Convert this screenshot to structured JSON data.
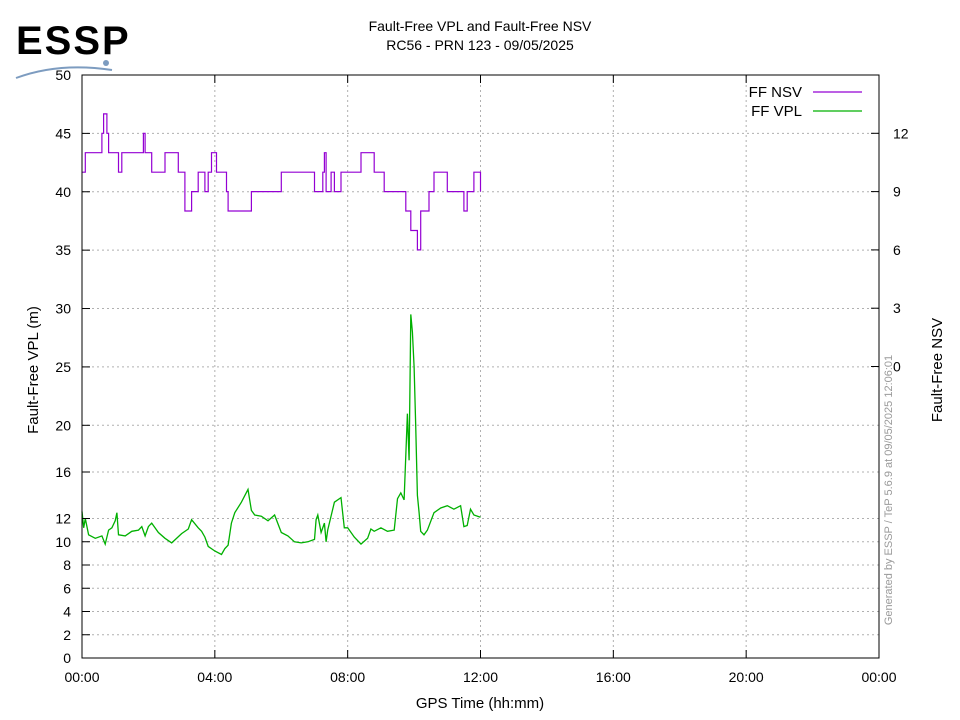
{
  "logo": {
    "text": "ESSP",
    "color": "#7d9cc0"
  },
  "chart_data": {
    "type": "line",
    "title": "Fault-Free VPL and Fault-Free NSV",
    "subtitle": "RC56 - PRN 123 - 09/05/2025",
    "xlabel": "GPS Time (hh:mm)",
    "ylabel": "Fault-Free VPL (m)",
    "y2label": "Fault-Free NSV",
    "x_unit": "hours",
    "xlim": [
      0,
      24
    ],
    "x_ticks": [
      0,
      4,
      8,
      12,
      16,
      20,
      24
    ],
    "x_tick_labels": [
      "00:00",
      "04:00",
      "08:00",
      "12:00",
      "16:00",
      "20:00",
      "00:00"
    ],
    "ylim": [
      0,
      50
    ],
    "y_scale": "piecewise: 0-16 m linear over lower half, 16-50 m linear over upper half",
    "y_ticks": [
      0,
      2,
      4,
      6,
      8,
      10,
      12,
      16,
      20,
      25,
      30,
      35,
      40,
      45,
      50
    ],
    "y2_ticks": [
      0,
      3,
      6,
      9,
      12
    ],
    "grid": true,
    "legend_position": "top-right",
    "watermark": "Generated by ESSP / TeP 5.6.9 at 09/05/2025 12:06:01",
    "series": [
      {
        "name": "FF NSV",
        "color": "#9400d3",
        "axis": "y2",
        "step": true,
        "x": [
          0.0,
          0.1,
          0.6,
          0.65,
          0.75,
          0.8,
          1.1,
          1.2,
          1.85,
          1.9,
          2.1,
          2.5,
          2.9,
          3.1,
          3.3,
          3.5,
          3.7,
          3.8,
          3.9,
          4.05,
          4.35,
          4.4,
          4.5,
          5.1,
          5.8,
          6.0,
          7.0,
          7.1,
          7.25,
          7.3,
          7.35,
          7.5,
          7.6,
          7.8,
          8.4,
          8.8,
          9.1,
          9.5,
          9.75,
          9.9,
          10.1,
          10.2,
          10.45,
          10.6,
          11.0,
          11.5,
          11.6,
          11.8,
          12.0
        ],
        "values": [
          10,
          11,
          12,
          13,
          12,
          11,
          10,
          11,
          12,
          11,
          10,
          11,
          10,
          8,
          9,
          10,
          9,
          10,
          11,
          10,
          9,
          8,
          8,
          9,
          9,
          10,
          9,
          9,
          10,
          11,
          9,
          10,
          9,
          10,
          11,
          10,
          9,
          9,
          8,
          7,
          6,
          8,
          9,
          10,
          9,
          8,
          9,
          10,
          9
        ]
      },
      {
        "name": "FF VPL",
        "color": "#00b000",
        "axis": "y",
        "step": false,
        "x": [
          0.0,
          0.05,
          0.1,
          0.2,
          0.4,
          0.6,
          0.7,
          0.8,
          0.9,
          1.0,
          1.05,
          1.1,
          1.3,
          1.5,
          1.7,
          1.8,
          1.9,
          2.0,
          2.1,
          2.3,
          2.5,
          2.7,
          3.0,
          3.2,
          3.3,
          3.5,
          3.6,
          3.7,
          3.8,
          4.0,
          4.2,
          4.3,
          4.4,
          4.5,
          4.6,
          4.8,
          5.0,
          5.1,
          5.2,
          5.4,
          5.6,
          5.8,
          6.0,
          6.2,
          6.4,
          6.6,
          6.8,
          7.0,
          7.05,
          7.1,
          7.2,
          7.3,
          7.35,
          7.4,
          7.6,
          7.8,
          7.9,
          8.0,
          8.2,
          8.4,
          8.6,
          8.7,
          8.8,
          9.0,
          9.2,
          9.4,
          9.5,
          9.6,
          9.7,
          9.8,
          9.85,
          9.9,
          9.95,
          10.0,
          10.05,
          10.1,
          10.15,
          10.2,
          10.3,
          10.4,
          10.6,
          10.8,
          11.0,
          11.2,
          11.4,
          11.5,
          11.6,
          11.7,
          11.8,
          12.0
        ],
        "values": [
          12.6,
          11.2,
          12.0,
          10.6,
          10.3,
          10.5,
          9.8,
          11.0,
          11.2,
          11.8,
          12.5,
          10.6,
          10.5,
          10.9,
          11.0,
          11.3,
          10.5,
          11.3,
          11.6,
          10.8,
          10.3,
          9.9,
          10.7,
          11.1,
          11.9,
          11.2,
          10.9,
          10.4,
          9.6,
          9.2,
          8.9,
          9.4,
          9.7,
          11.6,
          12.5,
          13.4,
          14.5,
          12.7,
          12.3,
          12.2,
          11.8,
          12.3,
          10.8,
          10.5,
          10.0,
          9.9,
          10.0,
          10.2,
          11.9,
          12.3,
          10.8,
          11.6,
          10.0,
          11.0,
          13.4,
          13.8,
          11.2,
          11.2,
          10.4,
          9.8,
          10.3,
          11.1,
          10.9,
          11.2,
          10.9,
          11.0,
          13.7,
          14.2,
          13.6,
          21.0,
          17.0,
          29.5,
          28.0,
          25.0,
          20.0,
          14.0,
          12.5,
          10.9,
          10.6,
          11.0,
          12.5,
          12.9,
          13.1,
          12.8,
          13.1,
          11.3,
          11.4,
          12.8,
          12.3,
          12.1
        ]
      }
    ]
  }
}
